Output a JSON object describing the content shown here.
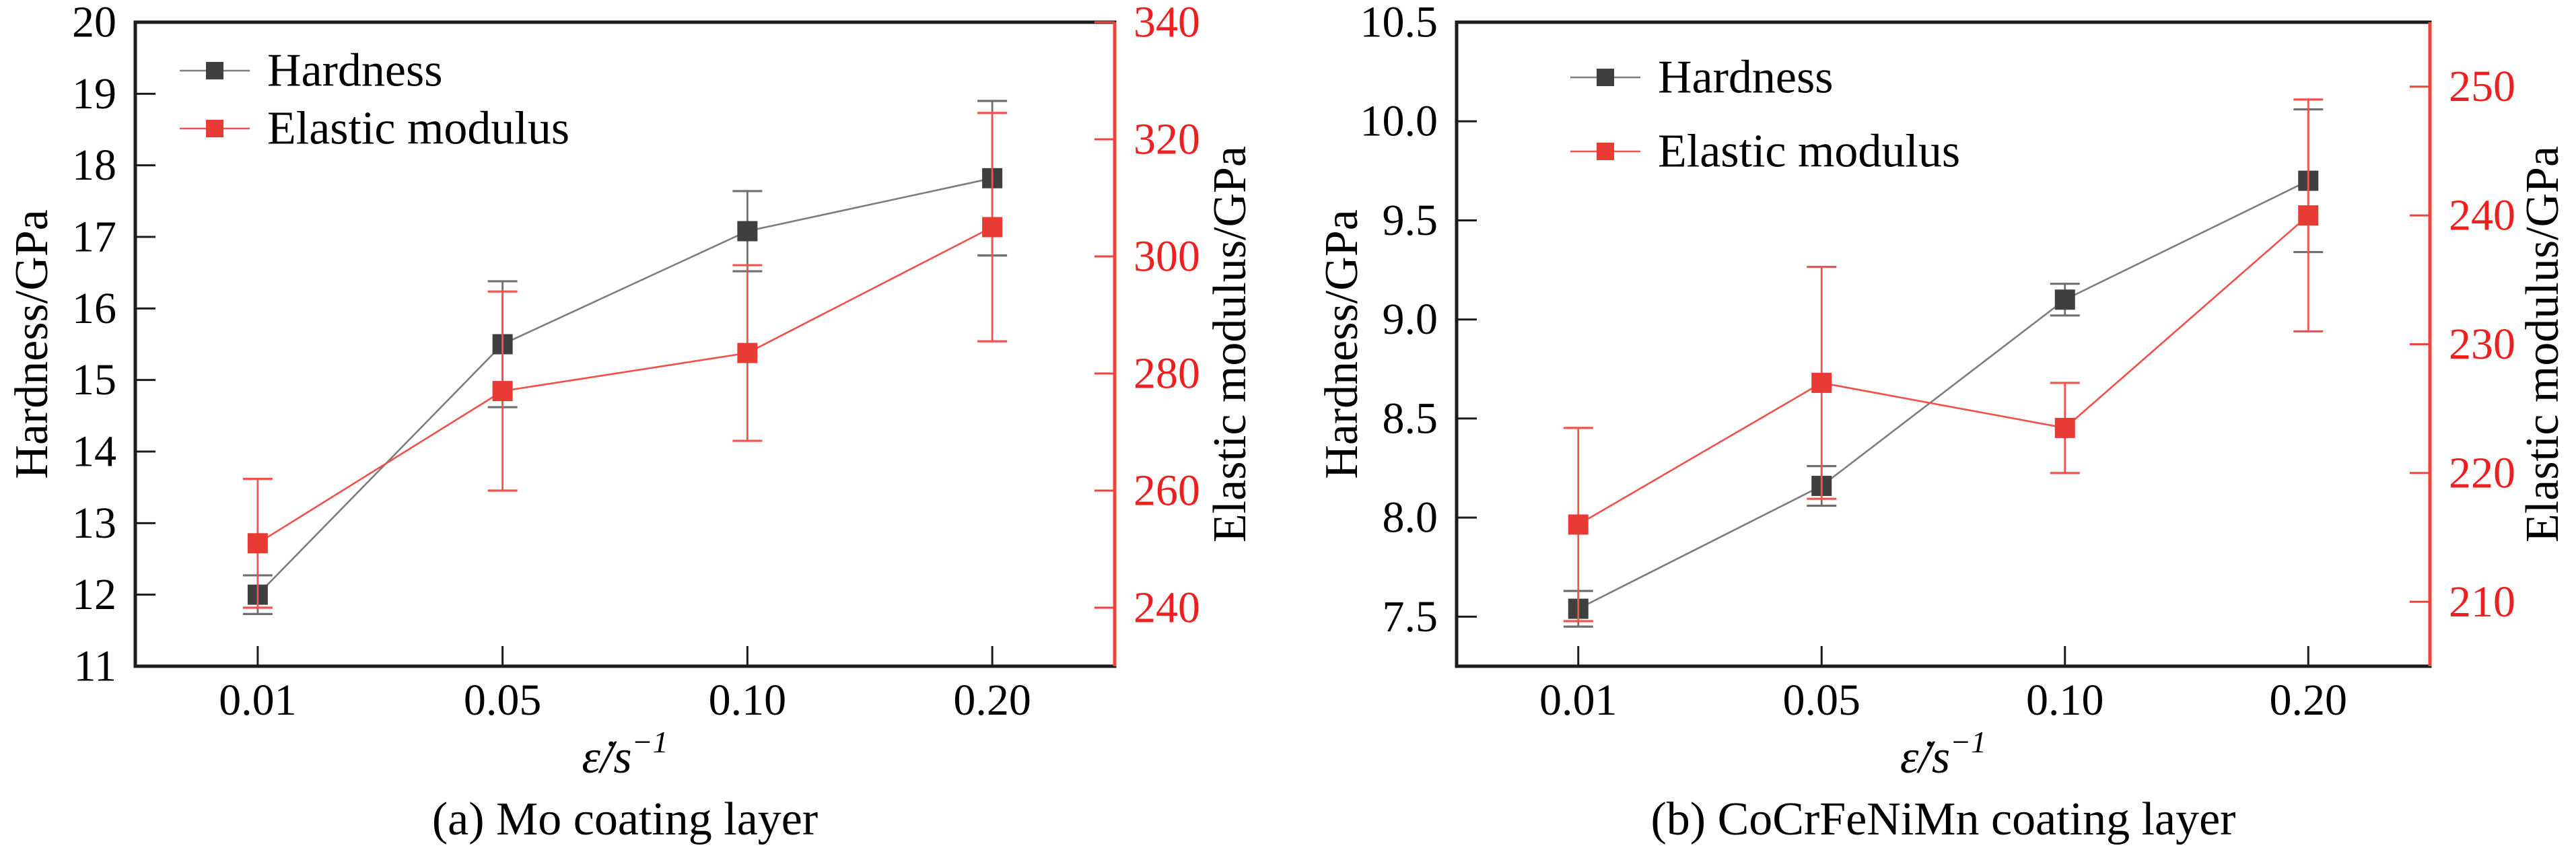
{
  "figure": {
    "colors": {
      "background": "#ffffff",
      "text": "#000000",
      "axis": "#1c1c1c",
      "right_axis_spine": "#f0433e",
      "right_tick_text": "#ee1f1f",
      "hardness_line": "#7d7d7d",
      "hardness_marker": "#3f3f3f",
      "hardness_error": "#6f6f6f",
      "elastic_line": "#f05049",
      "elastic_marker": "#e93b35",
      "elastic_error": "#f0544d"
    },
    "legend": {
      "items": [
        {
          "label": "Hardness",
          "series": "hardness"
        },
        {
          "label": "Elastic modulus",
          "series": "elastic"
        }
      ]
    }
  },
  "chart_data": [
    {
      "type": "line",
      "id": "a",
      "caption": "(a) Mo coating layer",
      "xlabel_base": "ε̇/s",
      "xlabel_sup": "−1",
      "x_values": [
        0.01,
        0.05,
        0.1,
        0.2
      ],
      "x_tick_labels": [
        "0.01",
        "0.05",
        "0.10",
        "0.20"
      ],
      "left_axis": {
        "label": "Hardness/GPa",
        "range": [
          11,
          20
        ],
        "ticks": [
          11,
          12,
          13,
          14,
          15,
          16,
          17,
          18,
          19,
          20
        ],
        "tick_labels": [
          "11",
          "12",
          "13",
          "14",
          "15",
          "16",
          "17",
          "18",
          "19",
          "20"
        ]
      },
      "right_axis": {
        "label": "Elastic modulus/GPa",
        "range": [
          230,
          340
        ],
        "ticks": [
          240,
          260,
          280,
          300,
          320,
          340
        ],
        "tick_labels": [
          "240",
          "260",
          "280",
          "300",
          "320",
          "340"
        ]
      },
      "series": [
        {
          "name": "Hardness",
          "axis": "left",
          "values": [
            12.0,
            15.5,
            17.08,
            17.82
          ],
          "errors": [
            0.27,
            0.88,
            0.56,
            1.08
          ]
        },
        {
          "name": "Elastic modulus",
          "axis": "right",
          "values": [
            251,
            277,
            283.5,
            305
          ],
          "errors": [
            11,
            17,
            15,
            19.5
          ]
        }
      ],
      "legend_position": "top-left",
      "grid": false
    },
    {
      "type": "line",
      "id": "b",
      "caption": "(b) CoCrFeNiMn coating layer",
      "xlabel_base": "ε̇/s",
      "xlabel_sup": "−1",
      "x_values": [
        0.01,
        0.05,
        0.1,
        0.2
      ],
      "x_tick_labels": [
        "0.01",
        "0.05",
        "0.10",
        "0.20"
      ],
      "left_axis": {
        "label": "Hardness/GPa",
        "range": [
          7.25,
          10.5
        ],
        "ticks": [
          7.5,
          8.0,
          8.5,
          9.0,
          9.5,
          10.0,
          10.5
        ],
        "tick_labels": [
          "7.5",
          "8.0",
          "8.5",
          "9.0",
          "9.5",
          "10.0",
          "10.5"
        ]
      },
      "right_axis": {
        "label": "Elastic modulus/GPa",
        "range": [
          205,
          255
        ],
        "ticks": [
          210,
          220,
          230,
          240,
          250
        ],
        "tick_labels": [
          "210",
          "220",
          "230",
          "240",
          "250"
        ]
      },
      "series": [
        {
          "name": "Hardness",
          "axis": "left",
          "values": [
            7.54,
            8.16,
            9.1,
            9.7
          ],
          "errors": [
            0.09,
            0.1,
            0.08,
            0.36
          ]
        },
        {
          "name": "Elastic modulus",
          "axis": "right",
          "values": [
            216,
            227,
            223.5,
            240
          ],
          "errors": [
            7.5,
            9.0,
            3.5,
            9.0
          ]
        }
      ],
      "legend_position": "top-left",
      "grid": false
    }
  ]
}
